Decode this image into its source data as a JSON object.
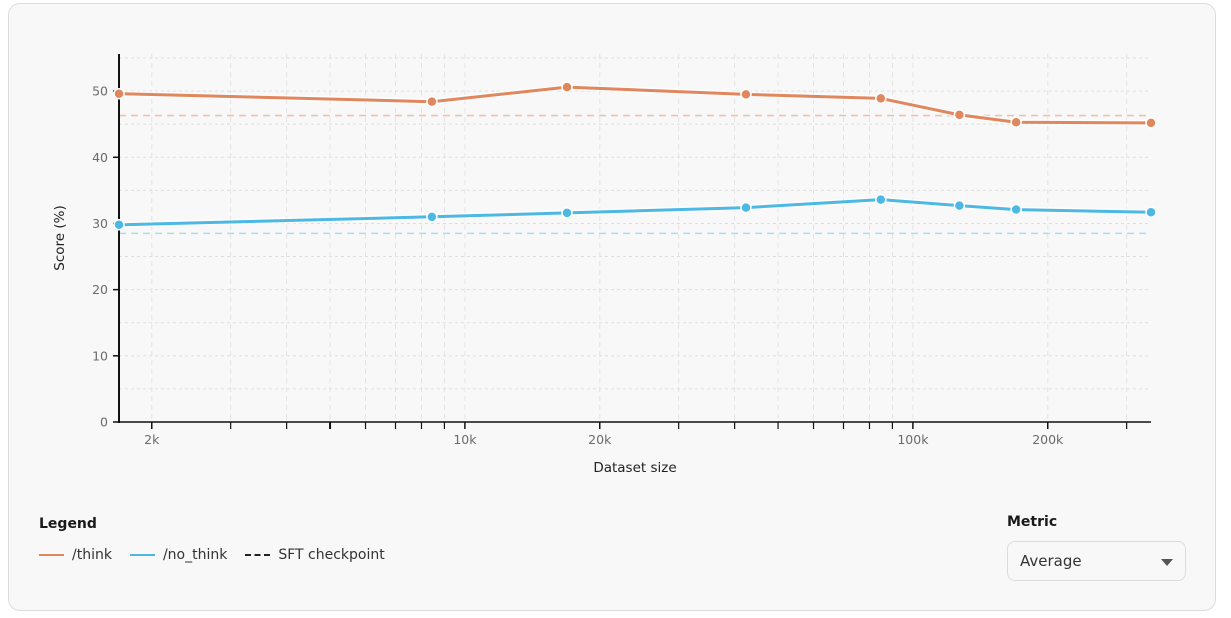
{
  "chart_data": {
    "type": "line",
    "title": "",
    "xlabel": "Dataset size",
    "ylabel": "Score (%)",
    "xscale": "log",
    "xlim": [
      1690,
      340000
    ],
    "ylim": [
      0,
      55
    ],
    "x_ticks": [
      2000,
      10000,
      20000,
      100000,
      200000
    ],
    "x_tick_labels": [
      "2k",
      "10k",
      "20k",
      "100k",
      "200k"
    ],
    "x_minor_ticks": [
      3000,
      4000,
      5000,
      6000,
      7000,
      8000,
      9000,
      30000,
      40000,
      50000,
      60000,
      70000,
      80000,
      90000,
      300000
    ],
    "y_ticks": [
      0,
      10,
      20,
      30,
      40,
      50
    ],
    "grid": true,
    "x": [
      1690,
      8440,
      16900,
      42400,
      84800,
      127000,
      170000,
      340000
    ],
    "series": [
      {
        "name": "/think",
        "color": "#E0875E",
        "values": [
          49.6,
          48.4,
          50.6,
          49.5,
          48.9,
          46.4,
          45.3,
          45.2
        ]
      },
      {
        "name": "/no_think",
        "color": "#4CB8E4",
        "values": [
          29.8,
          31.0,
          31.6,
          32.4,
          33.6,
          32.7,
          32.1,
          31.7
        ]
      }
    ],
    "reference_lines": [
      {
        "name": "SFT checkpoint (/think)",
        "style": "dashed",
        "color": "#F0C2AB",
        "value": 46.3
      },
      {
        "name": "SFT checkpoint (/no_think)",
        "style": "dashed",
        "color": "#ABDDF3",
        "value": 28.5
      }
    ],
    "legend_position": "bottom-left"
  },
  "legend": {
    "title": "Legend",
    "items": [
      {
        "label": "/think",
        "color": "#E0875E",
        "style": "solid"
      },
      {
        "label": "/no_think",
        "color": "#4CB8E4",
        "style": "solid"
      },
      {
        "label": "SFT checkpoint",
        "color": "#222222",
        "style": "dashed"
      }
    ]
  },
  "metric": {
    "title": "Metric",
    "selected": "Average"
  }
}
